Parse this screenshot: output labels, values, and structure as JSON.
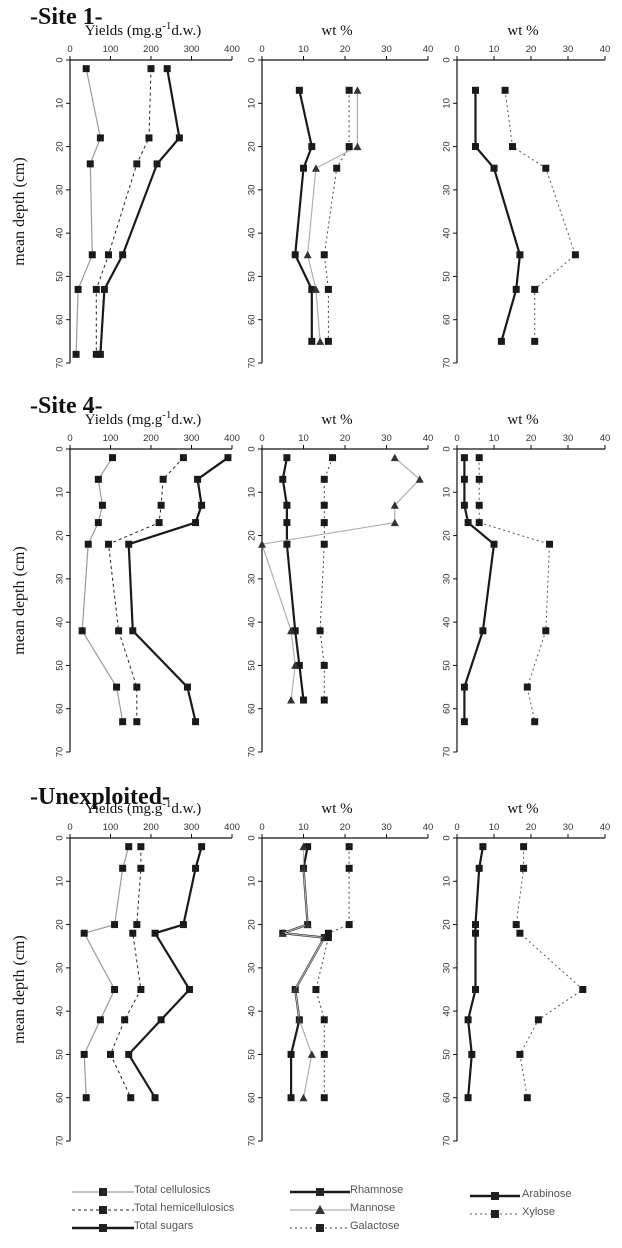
{
  "sites": [
    "-Site 1-",
    "-Site 4-",
    "-Unexploited-"
  ],
  "panel_headers": {
    "yields": "Yields (mg.g-1d.w.)",
    "wt": "wt %"
  },
  "y_axis_label": "mean depth (cm)",
  "legend": {
    "total_cellulosics": "Total cellulosics",
    "total_hemicellulosics": "Total hemicellulosics",
    "total_sugars": "Total sugars",
    "rhamnose": "Rhamnose",
    "mannose": "Mannose",
    "galactose": "Galactose",
    "arabinose": "Arabinose",
    "xylose": "Xylose"
  },
  "colors": {
    "cellulosics": "#9a9a9a",
    "hemicellulosics": "#222222",
    "sugars": "#1a1a1a",
    "rhamnose": "#1a1a1a",
    "mannose": "#b0b0b0",
    "galactose": "#444444",
    "arabinose": "#1a1a1a",
    "xylose": "#555555"
  },
  "chart_data": [
    {
      "type": "line",
      "site": "-Site 1-",
      "panel": "yields",
      "xlabel": "Yields (mg.g-1d.w.)",
      "ylabel": "mean depth (cm)",
      "xlim": [
        0,
        400
      ],
      "ylim": [
        70,
        0
      ],
      "x_ticks": [
        0,
        100,
        200,
        300,
        400
      ],
      "y_ticks": [
        0,
        10,
        20,
        30,
        40,
        50,
        60,
        70
      ],
      "series": [
        {
          "name": "Total cellulosics",
          "style": "cellulosics",
          "x": [
            40,
            75,
            50,
            55,
            20,
            15
          ],
          "y": [
            2,
            18,
            24,
            45,
            53,
            68
          ]
        },
        {
          "name": "Total hemicellulosics",
          "style": "hemicellulosics",
          "x": [
            200,
            195,
            165,
            95,
            65,
            65
          ],
          "y": [
            2,
            18,
            24,
            45,
            53,
            68
          ]
        },
        {
          "name": "Total sugars",
          "style": "sugars",
          "x": [
            240,
            270,
            215,
            130,
            85,
            75
          ],
          "y": [
            2,
            18,
            24,
            45,
            53,
            68
          ]
        }
      ]
    },
    {
      "type": "line",
      "site": "-Site 1-",
      "panel": "wt1",
      "xlabel": "wt %",
      "ylabel": "mean depth (cm)",
      "xlim": [
        0,
        40
      ],
      "ylim": [
        70,
        0
      ],
      "x_ticks": [
        0,
        10,
        20,
        30,
        40
      ],
      "y_ticks": [
        0,
        10,
        20,
        30,
        40,
        50,
        60,
        70
      ],
      "series": [
        {
          "name": "Rhamnose",
          "style": "rhamnose",
          "x": [
            9,
            12,
            10,
            8,
            12,
            12
          ],
          "y": [
            7,
            20,
            25,
            45,
            53,
            65
          ]
        },
        {
          "name": "Mannose",
          "style": "mannose",
          "x": [
            23,
            23,
            13,
            11,
            13,
            14
          ],
          "y": [
            7,
            20,
            25,
            45,
            53,
            65
          ]
        },
        {
          "name": "Galactose",
          "style": "galactose",
          "x": [
            21,
            21,
            18,
            15,
            16,
            16
          ],
          "y": [
            7,
            20,
            25,
            45,
            53,
            65
          ]
        }
      ]
    },
    {
      "type": "line",
      "site": "-Site 1-",
      "panel": "wt2",
      "xlabel": "wt %",
      "ylabel": "mean depth (cm)",
      "xlim": [
        0,
        40
      ],
      "ylim": [
        70,
        0
      ],
      "x_ticks": [
        0,
        10,
        20,
        30,
        40
      ],
      "y_ticks": [
        0,
        10,
        20,
        30,
        40,
        50,
        60,
        70
      ],
      "series": [
        {
          "name": "Arabinose",
          "style": "arabinose",
          "x": [
            5,
            5,
            10,
            17,
            16,
            12
          ],
          "y": [
            7,
            20,
            25,
            45,
            53,
            65
          ]
        },
        {
          "name": "Xylose",
          "style": "xylose",
          "x": [
            13,
            15,
            24,
            32,
            21,
            21
          ],
          "y": [
            7,
            20,
            25,
            45,
            53,
            65
          ]
        }
      ]
    },
    {
      "type": "line",
      "site": "-Site 4-",
      "panel": "yields",
      "xlabel": "Yields (mg.g-1d.w.)",
      "ylabel": "mean depth (cm)",
      "xlim": [
        0,
        400
      ],
      "ylim": [
        70,
        0
      ],
      "x_ticks": [
        0,
        100,
        200,
        300,
        400
      ],
      "y_ticks": [
        0,
        10,
        20,
        30,
        40,
        50,
        60,
        70
      ],
      "series": [
        {
          "name": "Total cellulosics",
          "style": "cellulosics",
          "x": [
            105,
            70,
            80,
            70,
            45,
            30,
            115,
            130
          ],
          "y": [
            2,
            7,
            13,
            17,
            22,
            42,
            55,
            63
          ]
        },
        {
          "name": "Total hemicellulosics",
          "style": "hemicellulosics",
          "x": [
            280,
            230,
            225,
            220,
            95,
            120,
            165,
            165
          ],
          "y": [
            2,
            7,
            13,
            17,
            22,
            42,
            55,
            63
          ]
        },
        {
          "name": "Total sugars",
          "style": "sugars",
          "x": [
            390,
            315,
            325,
            310,
            145,
            155,
            290,
            310
          ],
          "y": [
            2,
            7,
            13,
            17,
            22,
            42,
            55,
            63
          ]
        }
      ]
    },
    {
      "type": "line",
      "site": "-Site 4-",
      "panel": "wt1",
      "xlabel": "wt %",
      "ylabel": "mean depth (cm)",
      "xlim": [
        0,
        40
      ],
      "ylim": [
        70,
        0
      ],
      "x_ticks": [
        0,
        10,
        20,
        30,
        40
      ],
      "y_ticks": [
        0,
        10,
        20,
        30,
        40,
        50,
        60,
        70
      ],
      "series": [
        {
          "name": "Rhamnose",
          "style": "rhamnose",
          "x": [
            6,
            5,
            6,
            6,
            6,
            8,
            9,
            10
          ],
          "y": [
            2,
            7,
            13,
            17,
            22,
            42,
            50,
            58
          ]
        },
        {
          "name": "Mannose",
          "style": "mannose",
          "x": [
            32,
            38,
            32,
            32,
            0,
            7,
            8,
            7
          ],
          "y": [
            2,
            7,
            13,
            17,
            22,
            42,
            50,
            58
          ]
        },
        {
          "name": "Galactose",
          "style": "galactose",
          "x": [
            17,
            15,
            15,
            15,
            15,
            14,
            15,
            15
          ],
          "y": [
            2,
            7,
            13,
            17,
            22,
            42,
            50,
            58
          ]
        }
      ]
    },
    {
      "type": "line",
      "site": "-Site 4-",
      "panel": "wt2",
      "xlabel": "wt %",
      "ylabel": "mean depth (cm)",
      "xlim": [
        0,
        40
      ],
      "ylim": [
        70,
        0
      ],
      "x_ticks": [
        0,
        10,
        20,
        30,
        40
      ],
      "y_ticks": [
        0,
        10,
        20,
        30,
        40,
        50,
        60,
        70
      ],
      "series": [
        {
          "name": "Arabinose",
          "style": "arabinose",
          "x": [
            2,
            2,
            2,
            3,
            10,
            7,
            2,
            2
          ],
          "y": [
            2,
            7,
            13,
            17,
            22,
            42,
            55,
            63
          ]
        },
        {
          "name": "Xylose",
          "style": "xylose",
          "x": [
            6,
            6,
            6,
            6,
            25,
            24,
            19,
            21
          ],
          "y": [
            2,
            7,
            13,
            17,
            22,
            42,
            55,
            63
          ]
        }
      ]
    },
    {
      "type": "line",
      "site": "-Unexploited-",
      "panel": "yields",
      "xlabel": "Yields (mg.g-1d.w.)",
      "ylabel": "mean depth (cm)",
      "xlim": [
        0,
        400
      ],
      "ylim": [
        70,
        0
      ],
      "x_ticks": [
        0,
        100,
        200,
        300,
        400
      ],
      "y_ticks": [
        0,
        10,
        20,
        30,
        40,
        50,
        60,
        70
      ],
      "series": [
        {
          "name": "Total cellulosics",
          "style": "cellulosics",
          "x": [
            145,
            130,
            110,
            35,
            110,
            75,
            35,
            40
          ],
          "y": [
            2,
            7,
            20,
            22,
            35,
            42,
            50,
            60
          ]
        },
        {
          "name": "Total hemicellulosics",
          "style": "hemicellulosics",
          "x": [
            175,
            175,
            165,
            155,
            175,
            135,
            100,
            150
          ],
          "y": [
            2,
            7,
            20,
            22,
            35,
            42,
            50,
            60
          ]
        },
        {
          "name": "Total sugars",
          "style": "sugars",
          "x": [
            325,
            310,
            280,
            210,
            295,
            225,
            145,
            210
          ],
          "y": [
            2,
            7,
            20,
            22,
            35,
            42,
            50,
            60
          ]
        }
      ]
    },
    {
      "type": "line",
      "site": "-Unexploited-",
      "panel": "wt1",
      "xlabel": "wt %",
      "ylabel": "mean depth (cm)",
      "xlim": [
        0,
        40
      ],
      "ylim": [
        70,
        0
      ],
      "x_ticks": [
        0,
        10,
        20,
        30,
        40
      ],
      "y_ticks": [
        0,
        10,
        20,
        30,
        40,
        50,
        60,
        70
      ],
      "series": [
        {
          "name": "Rhamnose",
          "style": "rhamnose",
          "x": [
            11,
            10,
            11,
            5,
            15,
            8,
            9,
            7,
            7
          ],
          "y": [
            2,
            7,
            20,
            22,
            23,
            35,
            42,
            50,
            60
          ]
        },
        {
          "name": "Mannose",
          "style": "mannose",
          "x": [
            10,
            10,
            11,
            5,
            15,
            8,
            9,
            12,
            10
          ],
          "y": [
            2,
            7,
            20,
            22,
            23,
            35,
            42,
            50,
            60
          ]
        },
        {
          "name": "Galactose",
          "style": "galactose",
          "x": [
            21,
            21,
            21,
            16,
            16,
            13,
            15,
            15,
            15
          ],
          "y": [
            2,
            7,
            20,
            22,
            23,
            35,
            42,
            50,
            60
          ]
        }
      ]
    },
    {
      "type": "line",
      "site": "-Unexploited-",
      "panel": "wt2",
      "xlabel": "wt %",
      "ylabel": "mean depth (cm)",
      "xlim": [
        0,
        40
      ],
      "ylim": [
        70,
        0
      ],
      "x_ticks": [
        0,
        10,
        20,
        30,
        40
      ],
      "y_ticks": [
        0,
        10,
        20,
        30,
        40,
        50,
        60,
        70
      ],
      "series": [
        {
          "name": "Arabinose",
          "style": "arabinose",
          "x": [
            7,
            6,
            5,
            5,
            5,
            3,
            4,
            3
          ],
          "y": [
            2,
            7,
            20,
            22,
            35,
            42,
            50,
            60
          ]
        },
        {
          "name": "Xylose",
          "style": "xylose",
          "x": [
            18,
            18,
            16,
            17,
            34,
            22,
            17,
            19
          ],
          "y": [
            2,
            7,
            20,
            22,
            35,
            42,
            50,
            60
          ]
        }
      ]
    }
  ]
}
